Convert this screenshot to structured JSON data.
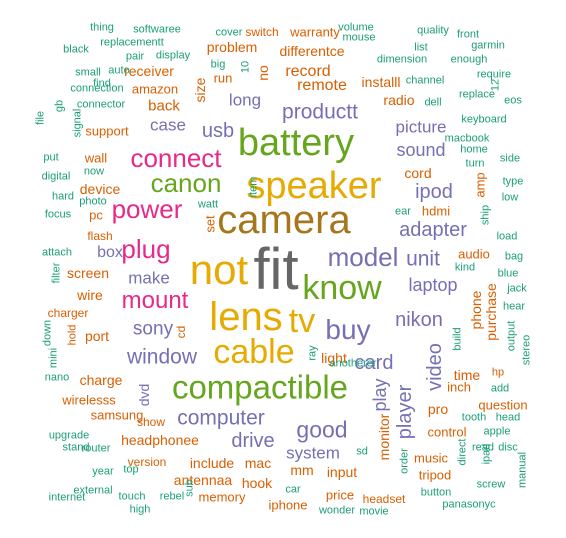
{
  "palette": {
    "orange": "#D95F02",
    "teal": "#1B9E77",
    "purple": "#7570B3",
    "magenta": "#E7298A",
    "green": "#66A61E",
    "gold": "#E6AB02",
    "brown": "#A6761D",
    "gray": "#666666"
  },
  "words": [
    {
      "text": "fit",
      "color": "gray"
    },
    {
      "text": "camera",
      "color": "brown"
    },
    {
      "text": "not",
      "color": "gold"
    },
    {
      "text": "lens",
      "color": "gold"
    },
    {
      "text": "know",
      "color": "green"
    },
    {
      "text": "speaker",
      "color": "gold"
    },
    {
      "text": "battery",
      "color": "green"
    },
    {
      "text": "compactible",
      "color": "green"
    },
    {
      "text": "cable",
      "color": "gold"
    },
    {
      "text": "tv",
      "color": "gold"
    },
    {
      "text": "buy",
      "color": "purple"
    },
    {
      "text": "connect",
      "color": "magenta"
    },
    {
      "text": "canon",
      "color": "green"
    },
    {
      "text": "power",
      "color": "magenta"
    },
    {
      "text": "plug",
      "color": "magenta"
    },
    {
      "text": "mount",
      "color": "magenta"
    },
    {
      "text": "model",
      "color": "purple"
    },
    {
      "text": "unit",
      "color": "purple"
    },
    {
      "text": "productt",
      "color": "purple"
    },
    {
      "text": "computer",
      "color": "purple"
    },
    {
      "text": "window",
      "color": "purple"
    },
    {
      "text": "good",
      "color": "purple"
    },
    {
      "text": "sony",
      "color": "purple"
    },
    {
      "text": "usb",
      "color": "purple"
    },
    {
      "text": "card",
      "color": "purple"
    },
    {
      "text": "video",
      "color": "purple"
    },
    {
      "text": "player",
      "color": "purple"
    },
    {
      "text": "adapter",
      "color": "purple"
    },
    {
      "text": "nikon",
      "color": "purple"
    },
    {
      "text": "laptop",
      "color": "purple"
    },
    {
      "text": "drive",
      "color": "purple"
    },
    {
      "text": "ipod",
      "color": "purple"
    },
    {
      "text": "sound",
      "color": "purple"
    },
    {
      "text": "picture",
      "color": "purple"
    },
    {
      "text": "long",
      "color": "purple"
    },
    {
      "text": "case",
      "color": "purple"
    },
    {
      "text": "make",
      "color": "purple"
    },
    {
      "text": "box",
      "color": "purple"
    },
    {
      "text": "system",
      "color": "purple"
    },
    {
      "text": "remote",
      "color": "orange"
    },
    {
      "text": "record",
      "color": "orange"
    },
    {
      "text": "play",
      "color": "purple"
    },
    {
      "text": "phone",
      "color": "orange"
    },
    {
      "text": "purchase",
      "color": "orange"
    },
    {
      "text": "monitor",
      "color": "orange"
    },
    {
      "text": "dvd",
      "color": "purple"
    },
    {
      "text": "headphonee",
      "color": "orange"
    },
    {
      "text": "radio",
      "color": "orange"
    },
    {
      "text": "size",
      "color": "orange"
    },
    {
      "text": "back",
      "color": "orange"
    },
    {
      "text": "receiver",
      "color": "orange"
    },
    {
      "text": "problem",
      "color": "orange"
    },
    {
      "text": "differentce",
      "color": "orange"
    },
    {
      "text": "no",
      "color": "orange"
    },
    {
      "text": "installl",
      "color": "orange"
    },
    {
      "text": "cord",
      "color": "orange"
    },
    {
      "text": "screen",
      "color": "orange"
    },
    {
      "text": "device",
      "color": "orange"
    },
    {
      "text": "wire",
      "color": "orange"
    },
    {
      "text": "port",
      "color": "orange"
    },
    {
      "text": "charge",
      "color": "orange"
    },
    {
      "text": "light",
      "color": "orange"
    },
    {
      "text": "audio",
      "color": "orange"
    },
    {
      "text": "time",
      "color": "orange"
    },
    {
      "text": "pro",
      "color": "orange"
    },
    {
      "text": "include",
      "color": "orange"
    },
    {
      "text": "mac",
      "color": "orange"
    },
    {
      "text": "hook",
      "color": "orange"
    },
    {
      "text": "mm",
      "color": "orange"
    },
    {
      "text": "input",
      "color": "orange"
    },
    {
      "text": "price",
      "color": "orange"
    },
    {
      "text": "iphone",
      "color": "orange"
    },
    {
      "text": "memory",
      "color": "orange"
    },
    {
      "text": "antennaa",
      "color": "orange"
    },
    {
      "text": "samsung",
      "color": "orange"
    },
    {
      "text": "wirelesss",
      "color": "orange"
    },
    {
      "text": "hdmi",
      "color": "orange"
    },
    {
      "text": "amp",
      "color": "orange"
    },
    {
      "text": "amazon",
      "color": "orange"
    },
    {
      "text": "support",
      "color": "orange"
    },
    {
      "text": "wall",
      "color": "orange"
    },
    {
      "text": "pc",
      "color": "orange"
    },
    {
      "text": "run",
      "color": "orange"
    },
    {
      "text": "set",
      "color": "orange"
    },
    {
      "text": "switch",
      "color": "orange"
    },
    {
      "text": "warranty",
      "color": "orange"
    },
    {
      "text": "question",
      "color": "orange"
    },
    {
      "text": "control",
      "color": "orange"
    },
    {
      "text": "music",
      "color": "orange"
    },
    {
      "text": "tripod",
      "color": "orange"
    },
    {
      "text": "headset",
      "color": "orange"
    },
    {
      "text": "hp",
      "color": "orange"
    },
    {
      "text": "inch",
      "color": "orange"
    },
    {
      "text": "cd",
      "color": "orange"
    },
    {
      "text": "show",
      "color": "orange"
    },
    {
      "text": "version",
      "color": "orange"
    },
    {
      "text": "flash",
      "color": "orange"
    },
    {
      "text": "charger",
      "color": "orange"
    },
    {
      "text": "hold",
      "color": "orange"
    },
    {
      "text": "channel",
      "color": "teal"
    },
    {
      "text": "dimension",
      "color": "teal"
    },
    {
      "text": "mouse",
      "color": "teal"
    },
    {
      "text": "cover",
      "color": "teal"
    },
    {
      "text": "softwaree",
      "color": "teal"
    },
    {
      "text": "replacementt",
      "color": "teal"
    },
    {
      "text": "thing",
      "color": "teal"
    },
    {
      "text": "quality",
      "color": "teal"
    },
    {
      "text": "front",
      "color": "teal"
    },
    {
      "text": "garmin",
      "color": "teal"
    },
    {
      "text": "list",
      "color": "teal"
    },
    {
      "text": "enough",
      "color": "teal"
    },
    {
      "text": "require",
      "color": "teal"
    },
    {
      "text": "replace",
      "color": "teal"
    },
    {
      "text": "keyboard",
      "color": "teal"
    },
    {
      "text": "macbook",
      "color": "teal"
    },
    {
      "text": "home",
      "color": "teal"
    },
    {
      "text": "turn",
      "color": "teal"
    },
    {
      "text": "side",
      "color": "teal"
    },
    {
      "text": "type",
      "color": "teal"
    },
    {
      "text": "low",
      "color": "teal"
    },
    {
      "text": "load",
      "color": "teal"
    },
    {
      "text": "bag",
      "color": "teal"
    },
    {
      "text": "blue",
      "color": "teal"
    },
    {
      "text": "jack",
      "color": "teal"
    },
    {
      "text": "hear",
      "color": "teal"
    },
    {
      "text": "stereo",
      "color": "teal"
    },
    {
      "text": "output",
      "color": "teal"
    },
    {
      "text": "kind",
      "color": "teal"
    },
    {
      "text": "build",
      "color": "teal"
    },
    {
      "text": "ship",
      "color": "teal"
    },
    {
      "text": "dell",
      "color": "teal"
    },
    {
      "text": "eos",
      "color": "teal"
    },
    {
      "text": "ear",
      "color": "teal"
    },
    {
      "text": "anotherer",
      "color": "teal"
    },
    {
      "text": "ray",
      "color": "teal"
    },
    {
      "text": "add",
      "color": "teal"
    },
    {
      "text": "head",
      "color": "teal"
    },
    {
      "text": "tooth",
      "color": "teal"
    },
    {
      "text": "apple",
      "color": "teal"
    },
    {
      "text": "read",
      "color": "teal"
    },
    {
      "text": "disc",
      "color": "teal"
    },
    {
      "text": "ipad",
      "color": "teal"
    },
    {
      "text": "direct",
      "color": "teal"
    },
    {
      "text": "order",
      "color": "teal"
    },
    {
      "text": "screw",
      "color": "teal"
    },
    {
      "text": "manual",
      "color": "teal"
    },
    {
      "text": "button",
      "color": "teal"
    },
    {
      "text": "panasonyc",
      "color": "teal"
    },
    {
      "text": "movie",
      "color": "teal"
    },
    {
      "text": "wonder",
      "color": "teal"
    },
    {
      "text": "car",
      "color": "teal"
    },
    {
      "text": "sd",
      "color": "teal"
    },
    {
      "text": "high",
      "color": "teal"
    },
    {
      "text": "touch",
      "color": "teal"
    },
    {
      "text": "rebel",
      "color": "teal"
    },
    {
      "text": "sub",
      "color": "teal"
    },
    {
      "text": "year",
      "color": "teal"
    },
    {
      "text": "top",
      "color": "teal"
    },
    {
      "text": "router",
      "color": "teal"
    },
    {
      "text": "external",
      "color": "teal"
    },
    {
      "text": "internet",
      "color": "teal"
    },
    {
      "text": "upgrade",
      "color": "teal"
    },
    {
      "text": "stand",
      "color": "teal"
    },
    {
      "text": "nano",
      "color": "teal"
    },
    {
      "text": "mini",
      "color": "teal"
    },
    {
      "text": "down",
      "color": "teal"
    },
    {
      "text": "attach",
      "color": "teal"
    },
    {
      "text": "filter",
      "color": "teal"
    },
    {
      "text": "focus",
      "color": "teal"
    },
    {
      "text": "hard",
      "color": "teal"
    },
    {
      "text": "digital",
      "color": "teal"
    },
    {
      "text": "put",
      "color": "teal"
    },
    {
      "text": "photo",
      "color": "teal"
    },
    {
      "text": "now",
      "color": "teal"
    },
    {
      "text": "watt",
      "color": "teal"
    },
    {
      "text": "item",
      "color": "teal"
    },
    {
      "text": "big",
      "color": "teal"
    },
    {
      "text": "volume",
      "color": "teal"
    },
    {
      "text": "10",
      "color": "teal"
    },
    {
      "text": "12",
      "color": "teal"
    },
    {
      "text": "file",
      "color": "teal"
    },
    {
      "text": "gb",
      "color": "teal"
    },
    {
      "text": "signal",
      "color": "teal"
    },
    {
      "text": "connector",
      "color": "teal"
    },
    {
      "text": "connection",
      "color": "teal"
    },
    {
      "text": "small",
      "color": "teal"
    },
    {
      "text": "find",
      "color": "teal"
    },
    {
      "text": "auto",
      "color": "teal"
    },
    {
      "text": "black",
      "color": "teal"
    },
    {
      "text": "pair",
      "color": "teal"
    },
    {
      "text": "display",
      "color": "teal"
    },
    {
      "text": "watch",
      "color": "teal"
    },
    {
      "text": "color",
      "color": "teal"
    }
  ]
}
